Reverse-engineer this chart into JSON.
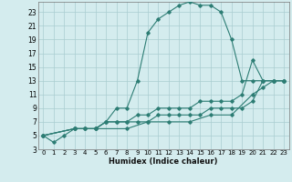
{
  "xlabel": "Humidex (Indice chaleur)",
  "bg_color": "#d4ecee",
  "grid_color": "#aacdd0",
  "line_color": "#2d7d74",
  "xlim": [
    -0.5,
    23.5
  ],
  "ylim": [
    3,
    24.5
  ],
  "xticks": [
    0,
    1,
    2,
    3,
    4,
    5,
    6,
    7,
    8,
    9,
    10,
    11,
    12,
    13,
    14,
    15,
    16,
    17,
    18,
    19,
    20,
    21,
    22,
    23
  ],
  "yticks": [
    3,
    5,
    7,
    9,
    11,
    13,
    15,
    17,
    19,
    21,
    23
  ],
  "series": [
    {
      "x": [
        0,
        1,
        2,
        3,
        4,
        5,
        6,
        7,
        8,
        9,
        10,
        11,
        12,
        13,
        14,
        15,
        16,
        17,
        18,
        19,
        20,
        21,
        22,
        23
      ],
      "y": [
        5,
        4,
        5,
        6,
        6,
        6,
        7,
        9,
        9,
        13,
        20,
        22,
        23,
        24,
        24.5,
        24,
        24,
        23,
        19,
        13,
        13,
        13,
        13,
        13
      ]
    },
    {
      "x": [
        0,
        3,
        4,
        5,
        6,
        7,
        8,
        9,
        10,
        11,
        12,
        13,
        14,
        15,
        16,
        17,
        18,
        19,
        20,
        21,
        22,
        23
      ],
      "y": [
        5,
        6,
        6,
        6,
        7,
        7,
        7,
        8,
        8,
        9,
        9,
        9,
        9,
        10,
        10,
        10,
        10,
        11,
        16,
        13,
        13,
        13
      ]
    },
    {
      "x": [
        0,
        3,
        4,
        5,
        6,
        7,
        8,
        9,
        10,
        11,
        12,
        13,
        14,
        15,
        16,
        17,
        18,
        19,
        20,
        21,
        22,
        23
      ],
      "y": [
        5,
        6,
        6,
        6,
        7,
        7,
        7,
        7,
        7,
        8,
        8,
        8,
        8,
        8,
        9,
        9,
        9,
        9,
        10,
        13,
        13,
        13
      ]
    },
    {
      "x": [
        0,
        3,
        5,
        8,
        10,
        12,
        14,
        16,
        18,
        20,
        21,
        22,
        23
      ],
      "y": [
        5,
        6,
        6,
        6,
        7,
        7,
        7,
        8,
        8,
        11,
        12,
        13,
        13
      ]
    }
  ]
}
